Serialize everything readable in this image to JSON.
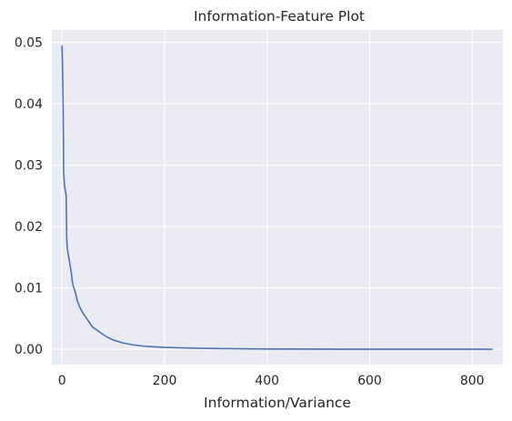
{
  "chart_data": {
    "type": "line",
    "title": "Information-Feature Plot",
    "xlabel": "Information/Variance",
    "ylabel": "",
    "xlim": [
      -20,
      860
    ],
    "ylim": [
      -0.0025,
      0.052
    ],
    "x_ticks": [
      0,
      200,
      400,
      600,
      800
    ],
    "y_ticks": [
      0.0,
      0.01,
      0.02,
      0.03,
      0.04,
      0.05
    ],
    "x_tick_labels": [
      "0",
      "200",
      "400",
      "600",
      "800"
    ],
    "y_tick_labels": [
      "0.00",
      "0.01",
      "0.02",
      "0.03",
      "0.04",
      "0.05"
    ],
    "grid": true,
    "colors": {
      "background": "#eaeaf2",
      "grid": "#ffffff",
      "line": "#4c72b0"
    },
    "series": [
      {
        "x": [
          0,
          1,
          2,
          3,
          4,
          5,
          6,
          7,
          8,
          9,
          10,
          12,
          14,
          16,
          18,
          20,
          22,
          24,
          26,
          28,
          30,
          33,
          36,
          40,
          44,
          48,
          52,
          56,
          60,
          70,
          80,
          90,
          100,
          120,
          140,
          160,
          180,
          200,
          250,
          300,
          350,
          400,
          500,
          600,
          700,
          800,
          840
        ],
        "y": [
          0.0495,
          0.045,
          0.04,
          0.029,
          0.0275,
          0.0265,
          0.026,
          0.0255,
          0.025,
          0.018,
          0.0165,
          0.0155,
          0.0145,
          0.0135,
          0.0125,
          0.011,
          0.0102,
          0.0098,
          0.0092,
          0.0085,
          0.0078,
          0.0072,
          0.0066,
          0.006,
          0.0055,
          0.005,
          0.0045,
          0.004,
          0.0036,
          0.003,
          0.0024,
          0.0019,
          0.0015,
          0.001,
          0.0007,
          0.0005,
          0.0004,
          0.0003,
          0.0002,
          0.00012,
          8e-05,
          5e-05,
          2e-05,
          1e-05,
          5e-06,
          2e-06,
          0.0
        ]
      }
    ]
  }
}
